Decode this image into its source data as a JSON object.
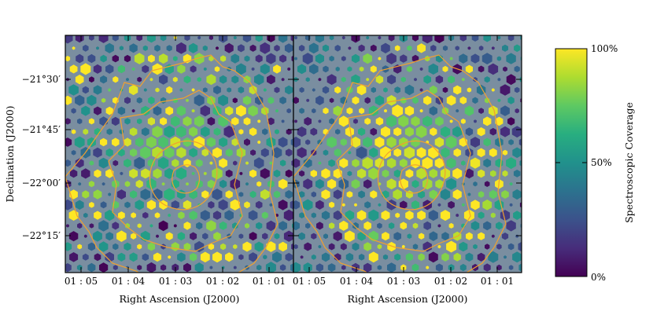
{
  "chart_data": {
    "type": "heatmap",
    "marker": "hexagon",
    "panels": [
      {
        "name": "left-panel",
        "xlabel": "Right Ascension (J2000)",
        "ylabel": "Declination (J2000)"
      },
      {
        "name": "right-panel",
        "xlabel": "Right Ascension (J2000)",
        "ylabel": ""
      }
    ],
    "x_ticks": [
      "01 : 05",
      "01 : 04",
      "01 : 03",
      "01 : 02",
      "01 : 01"
    ],
    "y_ticks": [
      "−21°30′",
      "−21°45′",
      "−22°00′",
      "−22°15′"
    ],
    "colorbar": {
      "label": "Spectroscopic Coverage",
      "ticks": [
        "0%",
        "50%",
        "100%"
      ],
      "range": [
        0,
        100
      ],
      "colormap": "viridis"
    },
    "contour_color": "#f0a030",
    "background_color": "#7a8ea0"
  }
}
